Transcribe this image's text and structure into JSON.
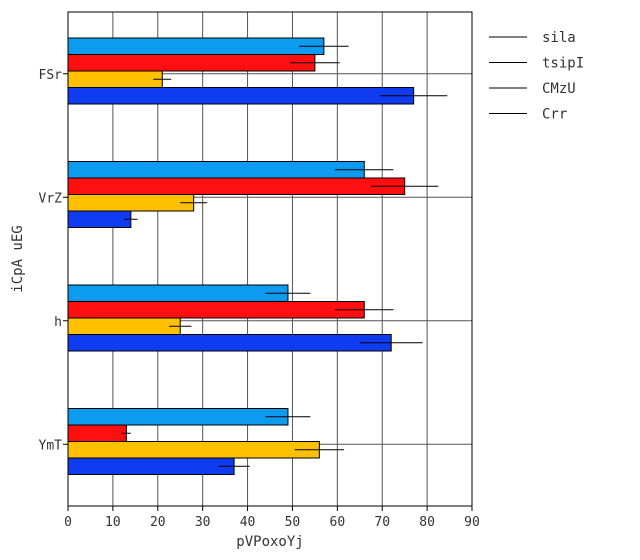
{
  "chart_data": {
    "type": "bar",
    "orientation": "horizontal",
    "categories": [
      "FSr",
      "VrZ",
      "h",
      "YmT"
    ],
    "series": [
      {
        "name": "sila",
        "color": "#0d9bf0",
        "values": [
          57,
          66,
          49,
          49
        ],
        "errors": [
          5.5,
          6.5,
          5,
          5
        ]
      },
      {
        "name": "tsipI",
        "color": "#ff0f0f",
        "values": [
          55,
          75,
          66,
          13
        ],
        "errors": [
          5.5,
          7.5,
          6.5,
          1
        ]
      },
      {
        "name": "CMzU",
        "color": "#ffc000",
        "values": [
          21,
          28,
          25,
          56
        ],
        "errors": [
          2,
          3,
          2.5,
          5.5
        ]
      },
      {
        "name": "Crr",
        "color": "#0f3cf0",
        "values": [
          77,
          14,
          72,
          37
        ],
        "errors": [
          7.5,
          1.5,
          7,
          3.5
        ]
      }
    ],
    "xlabel": "pVPoxoYj",
    "ylabel": "iCpA uEG",
    "xlim": [
      0,
      90
    ],
    "xticks": [
      0,
      10,
      20,
      30,
      40,
      50,
      60,
      70,
      80,
      90
    ],
    "grid": true,
    "legend": "top-right"
  }
}
